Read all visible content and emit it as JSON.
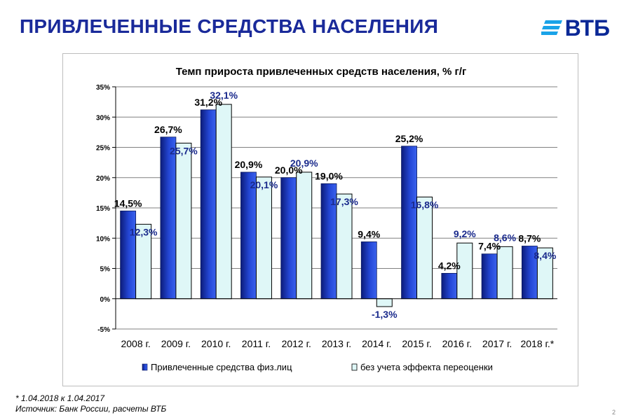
{
  "header": {
    "title": "ПРИВЛЕЧЕННЫЕ СРЕДСТВА НАСЕЛЕНИЯ",
    "logo_text": "ВТБ",
    "brand_color": "#0a2896"
  },
  "chart_data": {
    "type": "bar",
    "title": "Темп прироста привлеченных средств населения, % г/г",
    "categories": [
      "2008 г.",
      "2009 г.",
      "2010 г.",
      "2011 г.",
      "2012 г.",
      "2013 г.",
      "2014 г.",
      "2015 г.",
      "2016 г.",
      "2017 г.",
      "2018 г.*"
    ],
    "series": [
      {
        "name": "Привлеченные средства физ.лиц",
        "values": [
          14.5,
          26.7,
          31.2,
          20.9,
          20.0,
          19.0,
          9.4,
          25.2,
          4.2,
          7.4,
          8.7
        ],
        "labels": [
          "14,5%",
          "26,7%",
          "31,2%",
          "20,9%",
          "20,0%",
          "19,0%",
          "9,4%",
          "25,2%",
          "4,2%",
          "7,4%",
          "8,7%"
        ],
        "color": "#1a3fc8"
      },
      {
        "name": "без учета эффекта переоценки",
        "values": [
          12.3,
          25.7,
          32.1,
          20.1,
          20.9,
          17.3,
          -1.3,
          16.8,
          9.2,
          8.6,
          8.4
        ],
        "labels": [
          "12,3%",
          "25,7%",
          "32,1%",
          "20,1%",
          "20,9%",
          "17,3%",
          "-1,3%",
          "16,8%",
          "9,2%",
          "8,6%",
          "8,4%"
        ],
        "color": "#dff7f7"
      }
    ],
    "yticks": [
      "-5%",
      "0%",
      "5%",
      "10%",
      "15%",
      "20%",
      "25%",
      "30%",
      "35%"
    ],
    "ylim": [
      -5,
      35
    ],
    "xlabel": "",
    "ylabel": "",
    "grid": true,
    "legend_position": "bottom"
  },
  "footnote": {
    "line1": "* 1.04.2018 к 1.04.2017",
    "line2": "Источник: Банк России, расчеты ВТБ"
  },
  "page_number": "2"
}
